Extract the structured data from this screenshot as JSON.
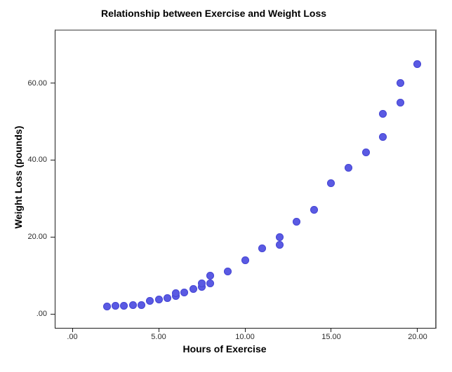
{
  "chart_data": {
    "type": "scatter",
    "title": "Relationship between Exercise and Weight Loss",
    "xlabel": "Hours of Exercise",
    "ylabel": "Weight Loss (pounds)",
    "x_ticks": [
      0,
      5,
      10,
      15,
      20
    ],
    "x_tick_labels": [
      ".00",
      "5.00",
      "10.00",
      "15.00",
      "20.00"
    ],
    "y_ticks": [
      0,
      20,
      40,
      60
    ],
    "y_tick_labels": [
      ".00",
      "20.00",
      "40.00",
      "60.00"
    ],
    "xlim": [
      -1.0163,
      21.0976
    ],
    "ylim": [
      -3.7273,
      73.9091
    ],
    "grid": false,
    "legend": null,
    "marker_color": "#5a5ae3",
    "points": [
      [
        2,
        2
      ],
      [
        2.5,
        2.1
      ],
      [
        3,
        2.1
      ],
      [
        3.5,
        2.3
      ],
      [
        4,
        2.4
      ],
      [
        4.5,
        3.5
      ],
      [
        5,
        3.8
      ],
      [
        5.5,
        4.2
      ],
      [
        6,
        4.8
      ],
      [
        6,
        5.5
      ],
      [
        6.5,
        5.7
      ],
      [
        7,
        6.5
      ],
      [
        7.5,
        7
      ],
      [
        7.5,
        8
      ],
      [
        8,
        8
      ],
      [
        8,
        10
      ],
      [
        9,
        11
      ],
      [
        10,
        14
      ],
      [
        11,
        17
      ],
      [
        12,
        18
      ],
      [
        12,
        20
      ],
      [
        13,
        24
      ],
      [
        14,
        27
      ],
      [
        15,
        34
      ],
      [
        16,
        38
      ],
      [
        17,
        42
      ],
      [
        18,
        46
      ],
      [
        18,
        52
      ],
      [
        19,
        55
      ],
      [
        19,
        60
      ],
      [
        20,
        65
      ]
    ]
  }
}
